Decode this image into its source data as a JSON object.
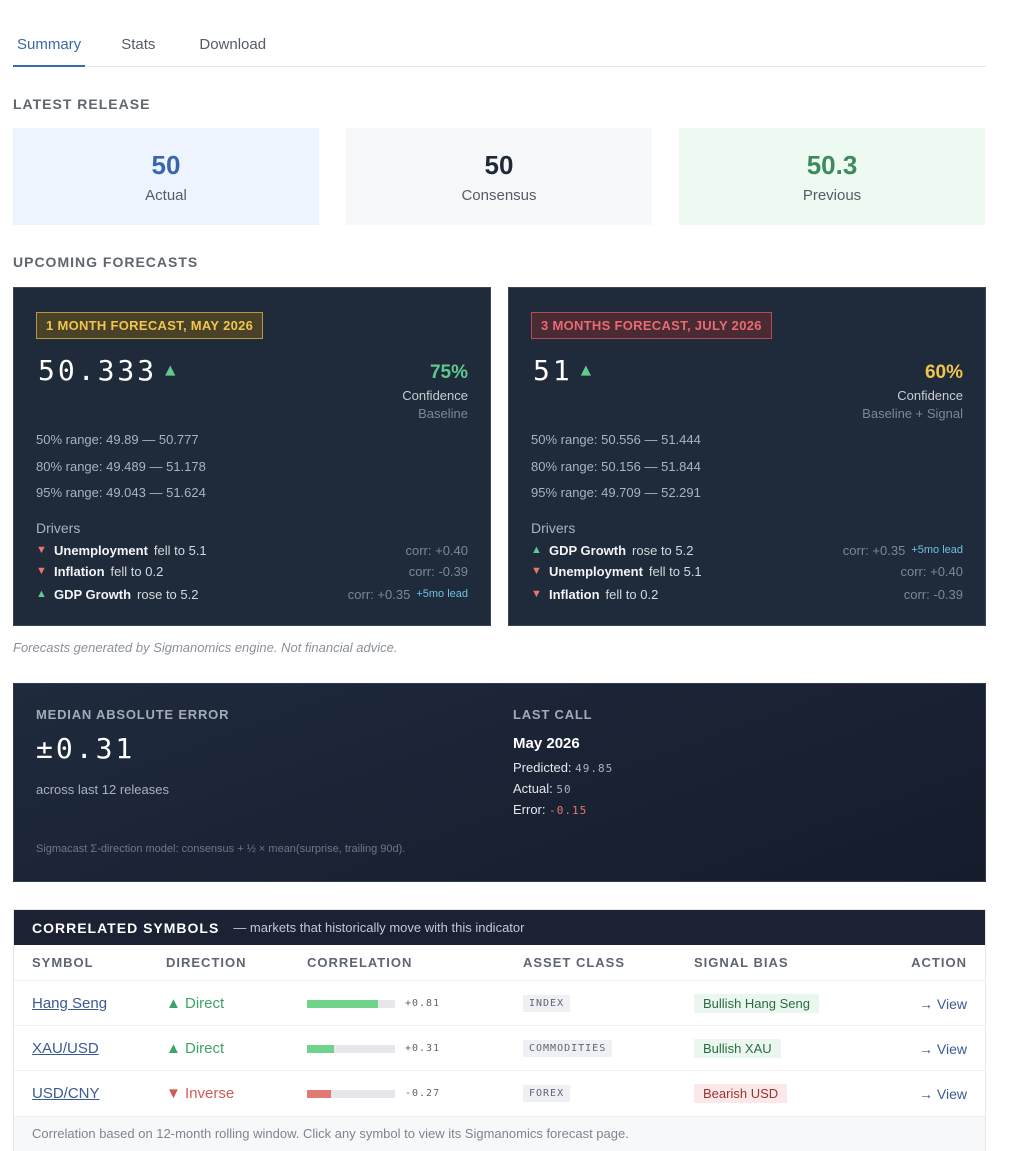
{
  "tabs": [
    {
      "label": "Summary",
      "active": true
    },
    {
      "label": "Stats",
      "active": false
    },
    {
      "label": "Download",
      "active": false
    }
  ],
  "latest_release": {
    "title": "LATEST RELEASE",
    "actual": {
      "value": "50",
      "label": "Actual",
      "color": "#3a66a7",
      "bg": "#edf4fd"
    },
    "consensus": {
      "value": "50",
      "label": "Consensus",
      "color": "#1f2937",
      "bg": "#f6f8fa"
    },
    "previous": {
      "value": "50.3",
      "label": "Previous",
      "color": "#3c8a5d",
      "bg": "#edfaf2"
    }
  },
  "upcoming": {
    "title": "UPCOMING FORECASTS",
    "cards": [
      {
        "badge": "1 MONTH FORECAST, MAY 2026",
        "value": "50.333",
        "arrow": "▲",
        "confidence": "75%",
        "confidence_color": "#5ecb8d",
        "confidence_label": "Confidence",
        "model": "Baseline",
        "ranges": [
          "50% range: 49.89 — 50.777",
          "80% range: 49.489 — 51.178",
          "95% range: 49.043 — 51.624"
        ],
        "drivers_title": "Drivers",
        "drivers": [
          {
            "dir": "down",
            "icon": "▼",
            "name": "Unemployment",
            "text": "fell to 5.1",
            "corr": "corr: +0.40",
            "lead": ""
          },
          {
            "dir": "down",
            "icon": "▼",
            "name": "Inflation",
            "text": "fell to 0.2",
            "corr": "corr: -0.39",
            "lead": ""
          },
          {
            "dir": "up",
            "icon": "▲",
            "name": "GDP Growth",
            "text": "rose to 5.2",
            "corr": "corr: +0.35",
            "lead": "+5mo lead"
          }
        ]
      },
      {
        "badge": "3 MONTHS FORECAST, JULY 2026",
        "value": "51",
        "arrow": "▲",
        "confidence": "60%",
        "confidence_color": "#f0c54d",
        "confidence_label": "Confidence",
        "model": "Baseline + Signal",
        "ranges": [
          "50% range: 50.556 — 51.444",
          "80% range: 50.156 — 51.844",
          "95% range: 49.709 — 52.291"
        ],
        "drivers_title": "Drivers",
        "drivers": [
          {
            "dir": "up",
            "icon": "▲",
            "name": "GDP Growth",
            "text": "rose to 5.2",
            "corr": "corr: +0.35",
            "lead": "+5mo lead"
          },
          {
            "dir": "down",
            "icon": "▼",
            "name": "Unemployment",
            "text": "fell to 5.1",
            "corr": "corr: +0.40",
            "lead": ""
          },
          {
            "dir": "down",
            "icon": "▼",
            "name": "Inflation",
            "text": "fell to 0.2",
            "corr": "corr: -0.39",
            "lead": ""
          }
        ]
      }
    ],
    "disclaimer": "Forecasts generated by Sigmanomics engine. Not financial advice."
  },
  "mae": {
    "title": "MEDIAN ABSOLUTE ERROR",
    "value": "±0.31",
    "sub": "across last 12 releases",
    "last_call_title": "LAST CALL",
    "last_call_month": "May 2026",
    "predicted_label": "Predicted:",
    "predicted": "49.85",
    "actual_label": "Actual:",
    "actual": "50",
    "error_label": "Error:",
    "error": "-0.15",
    "note": "Sigmacast Σ-direction model: consensus + ½ × mean(surprise, trailing 90d)."
  },
  "correlated": {
    "title": "CORRELATED SYMBOLS",
    "subtitle": "— markets that historically move with this indicator",
    "headers": {
      "symbol": "SYMBOL",
      "direction": "DIRECTION",
      "correlation": "CORRELATION",
      "asset_class": "ASSET CLASS",
      "signal_bias": "SIGNAL BIAS",
      "action": "ACTION"
    },
    "rows": [
      {
        "symbol": "Hang Seng",
        "direction": "▲ Direct",
        "dir": "up",
        "corr": 0.81,
        "corr_label": "+0.81",
        "bar_color": "#6fd38a",
        "asset": "INDEX",
        "bias": "Bullish Hang Seng",
        "bias_type": "bull",
        "action": "→ View"
      },
      {
        "symbol": "XAU/USD",
        "direction": "▲ Direct",
        "dir": "up",
        "corr": 0.31,
        "corr_label": "+0.31",
        "bar_color": "#6fd38a",
        "asset": "COMMODITIES",
        "bias": "Bullish XAU",
        "bias_type": "bull",
        "action": "→ View"
      },
      {
        "symbol": "USD/CNY",
        "direction": "▼ Inverse",
        "dir": "down",
        "corr": -0.27,
        "corr_label": "-0.27",
        "bar_color": "#e07a72",
        "asset": "FOREX",
        "bias": "Bearish USD",
        "bias_type": "bear",
        "action": "→ View"
      }
    ],
    "footer": "Correlation based on 12-month rolling window. Click any symbol to view its Sigmanomics forecast page."
  }
}
